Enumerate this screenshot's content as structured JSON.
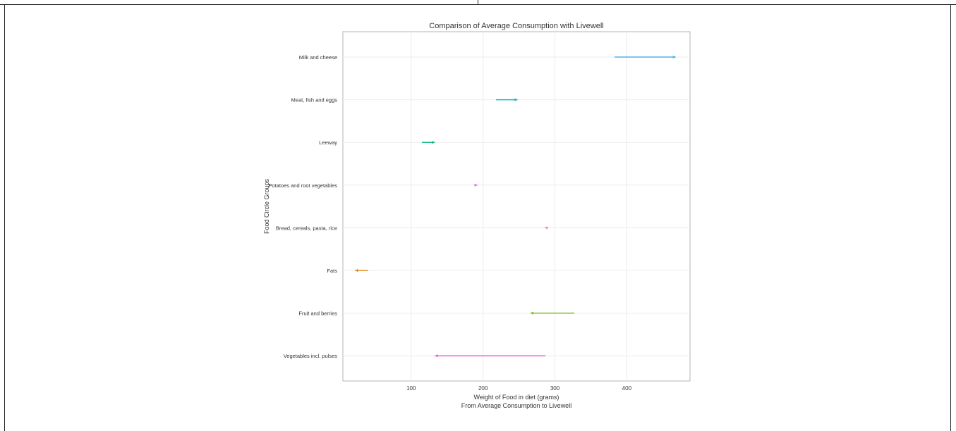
{
  "chart_data": {
    "type": "arrow",
    "title": "Comparison of Average Consumption with Livewell",
    "xlabel": "Weight of Food in diet (grams)",
    "subtitle": "From Average Consumption to Livewell",
    "ylabel": "Food Circle Groups",
    "xlim": [
      5,
      488
    ],
    "xticks": [
      100,
      200,
      300,
      400
    ],
    "grid": true,
    "categories": [
      "Milk and cheese",
      "Meat, fish and eggs",
      "Leeway",
      "Potatoes and root vegetables",
      "Bread, cereals, pasta, rice",
      "Fats",
      "Fruit and berries",
      "Vegetables incl. pulses"
    ],
    "series": [
      {
        "category": "Milk and cheese",
        "from": 383,
        "to": 468,
        "color": "#4fb3f0"
      },
      {
        "category": "Meat, fish and eggs",
        "from": 218,
        "to": 248,
        "color": "#1fb5c9"
      },
      {
        "category": "Leeway",
        "from": 115,
        "to": 133,
        "color": "#10b981"
      },
      {
        "category": "Potatoes and root vegetables",
        "from": 190,
        "to": 192,
        "color": "#d56ef0"
      },
      {
        "category": "Bread, cereals, pasta, rice",
        "from": 288,
        "to": 286,
        "color": "#f08a8a"
      },
      {
        "category": "Fats",
        "from": 40,
        "to": 22,
        "color": "#e08a1e"
      },
      {
        "category": "Fruit and berries",
        "from": 327,
        "to": 266,
        "color": "#7cb82a"
      },
      {
        "category": "Vegetables incl. pulses",
        "from": 287,
        "to": 133,
        "color": "#ee5fc4"
      }
    ]
  }
}
